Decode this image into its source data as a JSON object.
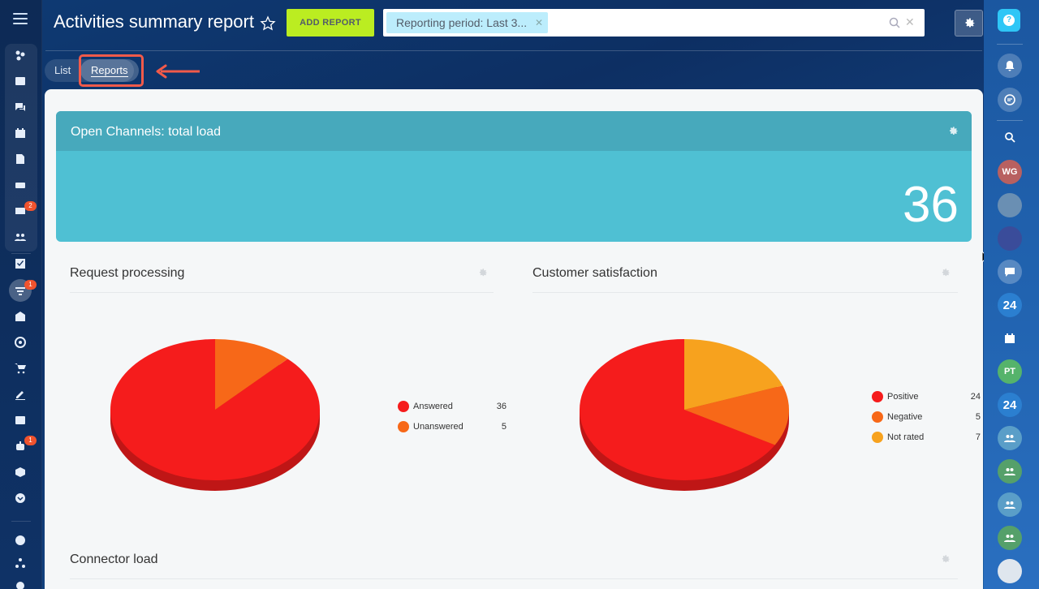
{
  "header": {
    "title": "Activities summary report",
    "add_button": "ADD REPORT",
    "filter_chip": "Reporting period: Last 3..."
  },
  "tabs": {
    "list": "List",
    "reports": "Reports"
  },
  "left_sidebar": {
    "badges": [
      "2",
      "1",
      "1"
    ]
  },
  "right_sidebar": {
    "avatars": [
      "WG",
      "PT"
    ],
    "b24_label": "24"
  },
  "open_channels": {
    "title": "Open Channels: total load",
    "value": "36"
  },
  "widgets": {
    "request_processing": {
      "title": "Request processing",
      "legend": [
        {
          "label": "Answered",
          "value": "36",
          "color": "#f51c1c"
        },
        {
          "label": "Unanswered",
          "value": "5",
          "color": "#f76818"
        }
      ]
    },
    "customer_satisfaction": {
      "title": "Customer satisfaction",
      "legend": [
        {
          "label": "Positive",
          "value": "24",
          "color": "#f51c1c"
        },
        {
          "label": "Negative",
          "value": "5",
          "color": "#f76818"
        },
        {
          "label": "Not rated",
          "value": "7",
          "color": "#f7a21e"
        }
      ]
    },
    "connector_load": {
      "title": "Connector load"
    }
  },
  "chart_data": [
    {
      "type": "pie",
      "title": "Request processing",
      "categories": [
        "Answered",
        "Unanswered"
      ],
      "values": [
        36,
        5
      ]
    },
    {
      "type": "pie",
      "title": "Customer satisfaction",
      "categories": [
        "Positive",
        "Negative",
        "Not rated"
      ],
      "values": [
        24,
        5,
        7
      ]
    }
  ]
}
